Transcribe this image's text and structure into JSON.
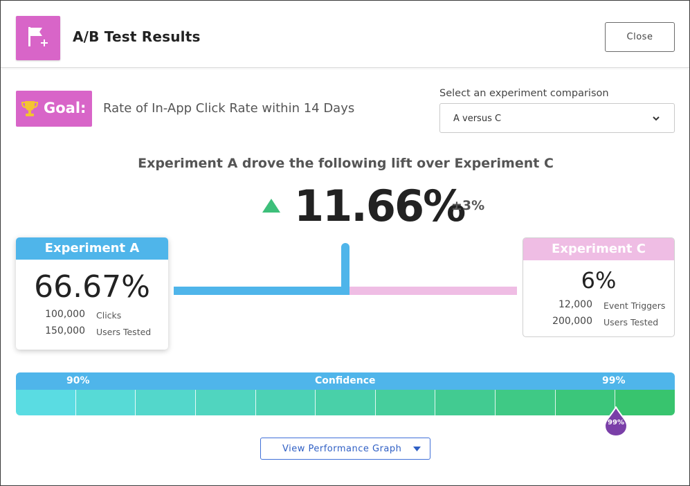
{
  "header": {
    "title": "A/B Test Results",
    "icon": "flag-plus-icon",
    "close_label": "Close",
    "accent_color": "#d865c8"
  },
  "goal": {
    "badge_label": "Goal:",
    "badge_icon": "trophy-icon",
    "text": "Rate of In-App Click Rate within 14 Days"
  },
  "comparison": {
    "label": "Select an experiment comparison",
    "selected": "A versus C"
  },
  "lift": {
    "headline": "Experiment A drove the following lift over Experiment C",
    "value": "11.66%",
    "margin": "±3%",
    "direction_color": "#3dbf7a"
  },
  "experiment_a": {
    "title": "Experiment A",
    "rate": "66.67%",
    "stats": [
      {
        "value": "100,000",
        "label": "Clicks"
      },
      {
        "value": "150,000",
        "label": "Users Tested"
      }
    ],
    "color": "#4fb5ea"
  },
  "experiment_c": {
    "title": "Experiment C",
    "rate": "6%",
    "stats": [
      {
        "value": "12,000",
        "label": "Event Triggers"
      },
      {
        "value": "200,000",
        "label": "Users Tested"
      }
    ],
    "color": "#efbde4"
  },
  "confidence": {
    "title": "Confidence",
    "low_label": "90%",
    "high_label": "99%",
    "marker_label": "99%",
    "segments": 11,
    "marker_color": "#7a3fa8"
  },
  "graph_button": {
    "label": "View Performance Graph"
  }
}
